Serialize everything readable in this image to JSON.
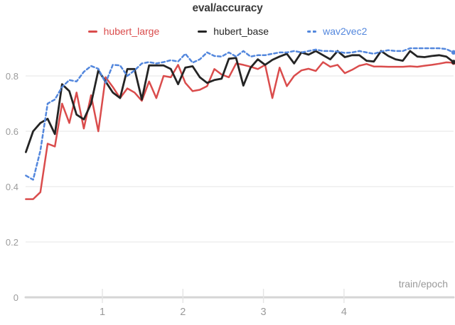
{
  "title": "eval/accuracy",
  "axis": {
    "x_label": "train/epoch"
  },
  "colors": {
    "grid": "#e9e9e9",
    "axis_line": "#d5d5d5",
    "x_tick_mark": "#e5e5e5",
    "tick_text": "#9b9b9b",
    "title_text": "#3b3b3b"
  },
  "chart_data": {
    "type": "line",
    "title": "eval/accuracy",
    "xlabel": "train/epoch",
    "ylabel": "",
    "grid": "horizontal",
    "legend_position": "top",
    "xlim": [
      0,
      5.4
    ],
    "ylim": [
      0,
      0.93
    ],
    "x_ticks": [
      1,
      2,
      3,
      4
    ],
    "y_ticks": [
      0,
      0.2,
      0.4,
      0.6,
      0.8
    ],
    "x": [
      0.05,
      0.14,
      0.23,
      0.32,
      0.41,
      0.5,
      0.59,
      0.68,
      0.77,
      0.86,
      0.95,
      1.04,
      1.13,
      1.22,
      1.31,
      1.4,
      1.49,
      1.58,
      1.67,
      1.76,
      1.85,
      1.94,
      2.03,
      2.12,
      2.21,
      2.3,
      2.39,
      2.48,
      2.57,
      2.66,
      2.75,
      2.84,
      2.93,
      3.02,
      3.11,
      3.2,
      3.29,
      3.38,
      3.47,
      3.56,
      3.65,
      3.74,
      3.83,
      3.92,
      4.01,
      4.1,
      4.19,
      4.28,
      4.37,
      4.46,
      4.55,
      4.64,
      4.73,
      4.82,
      4.91,
      5.0,
      5.09,
      5.18,
      5.27,
      5.36
    ],
    "series": [
      {
        "name": "hubert_large",
        "color": "#da4c4c",
        "style": "solid",
        "values": [
          0.355,
          0.355,
          0.38,
          0.555,
          0.545,
          0.7,
          0.63,
          0.74,
          0.61,
          0.73,
          0.6,
          0.795,
          0.76,
          0.72,
          0.755,
          0.74,
          0.71,
          0.78,
          0.72,
          0.8,
          0.795,
          0.84,
          0.775,
          0.745,
          0.75,
          0.763,
          0.825,
          0.805,
          0.795,
          0.845,
          0.84,
          0.833,
          0.825,
          0.84,
          0.72,
          0.83,
          0.763,
          0.8,
          0.82,
          0.826,
          0.818,
          0.85,
          0.833,
          0.84,
          0.81,
          0.822,
          0.837,
          0.843,
          0.834,
          0.834,
          0.833,
          0.833,
          0.833,
          0.835,
          0.833,
          0.837,
          0.84,
          0.844,
          0.849,
          0.848
        ]
      },
      {
        "name": "hubert_base",
        "color": "#242424",
        "style": "solid",
        "values": [
          0.525,
          0.6,
          0.63,
          0.645,
          0.59,
          0.77,
          0.745,
          0.66,
          0.643,
          0.7,
          0.82,
          0.78,
          0.74,
          0.72,
          0.825,
          0.825,
          0.715,
          0.838,
          0.838,
          0.838,
          0.825,
          0.77,
          0.83,
          0.835,
          0.795,
          0.775,
          0.785,
          0.79,
          0.862,
          0.865,
          0.765,
          0.83,
          0.86,
          0.84,
          0.858,
          0.87,
          0.88,
          0.845,
          0.885,
          0.877,
          0.89,
          0.875,
          0.86,
          0.89,
          0.868,
          0.875,
          0.875,
          0.855,
          0.852,
          0.89,
          0.872,
          0.86,
          0.855,
          0.89,
          0.87,
          0.868,
          0.872,
          0.875,
          0.87,
          0.85
        ]
      },
      {
        "name": "wav2vec2",
        "color": "#5387dd",
        "style": "dashed",
        "values": [
          0.44,
          0.425,
          0.53,
          0.7,
          0.715,
          0.76,
          0.785,
          0.78,
          0.815,
          0.836,
          0.826,
          0.775,
          0.84,
          0.838,
          0.8,
          0.82,
          0.845,
          0.85,
          0.845,
          0.85,
          0.857,
          0.852,
          0.88,
          0.848,
          0.86,
          0.885,
          0.872,
          0.87,
          0.885,
          0.87,
          0.89,
          0.87,
          0.875,
          0.875,
          0.88,
          0.885,
          0.885,
          0.89,
          0.885,
          0.89,
          0.895,
          0.89,
          0.89,
          0.888,
          0.883,
          0.885,
          0.89,
          0.885,
          0.88,
          0.888,
          0.893,
          0.89,
          0.89,
          0.9,
          0.9,
          0.9,
          0.9,
          0.9,
          0.897,
          0.885
        ]
      }
    ]
  }
}
